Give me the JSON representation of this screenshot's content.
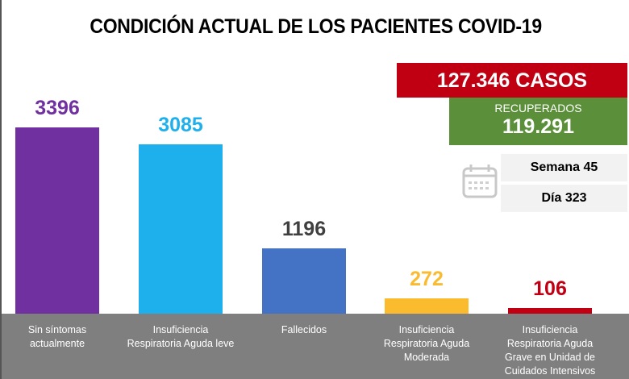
{
  "title": "CONDICIÓN ACTUAL DE LOS PACIENTES COVID-19",
  "summary": {
    "cases_label": "127.346 CASOS",
    "recovered_label": "RECUPERADOS",
    "recovered_value": "119.291",
    "week_label": "Semana 45",
    "day_label": "Día 323",
    "calendar_icon": "calendar-icon"
  },
  "colors": {
    "cases_bg": "#c00012",
    "recovered_bg": "#5b8f3a",
    "info_bg": "#f2f2f2",
    "band_bg": "#7f7f7f"
  },
  "chart_data": {
    "type": "bar",
    "title": "CONDICIÓN ACTUAL DE LOS PACIENTES COVID-19",
    "xlabel": "",
    "ylabel": "",
    "ylim": [
      0,
      3396
    ],
    "grid": false,
    "legend": "none",
    "categories": [
      "Sin síntomas actualmente",
      "Insuficiencia Respiratoria Aguda leve",
      "Fallecidos",
      "Insuficiencia Respiratoria Aguda Moderada",
      "Insuficiencia Respiratoria Aguda Grave en Unidad de Cuidados Intensivos"
    ],
    "category_lines": [
      [
        "Sin síntomas",
        "actualmente"
      ],
      [
        "Insuficiencia",
        "Respiratoria Aguda leve"
      ],
      [
        "Fallecidos"
      ],
      [
        "Insuficiencia",
        "Respiratoria Aguda",
        "Moderada"
      ],
      [
        "Insuficiencia",
        "Respiratoria Aguda",
        "Grave en Unidad de",
        "Cuidados Intensivos"
      ]
    ],
    "values": [
      3396,
      3085,
      1196,
      272,
      106
    ],
    "value_labels": [
      "3396",
      "3085",
      "1196",
      "272",
      "106"
    ],
    "bar_colors": [
      "#7030a0",
      "#1eb0ec",
      "#4472c4",
      "#fbbb2e",
      "#c00012"
    ],
    "label_colors": [
      "#7030a0",
      "#1eb0ec",
      "#404040",
      "#fbbb2e",
      "#c00012"
    ]
  }
}
